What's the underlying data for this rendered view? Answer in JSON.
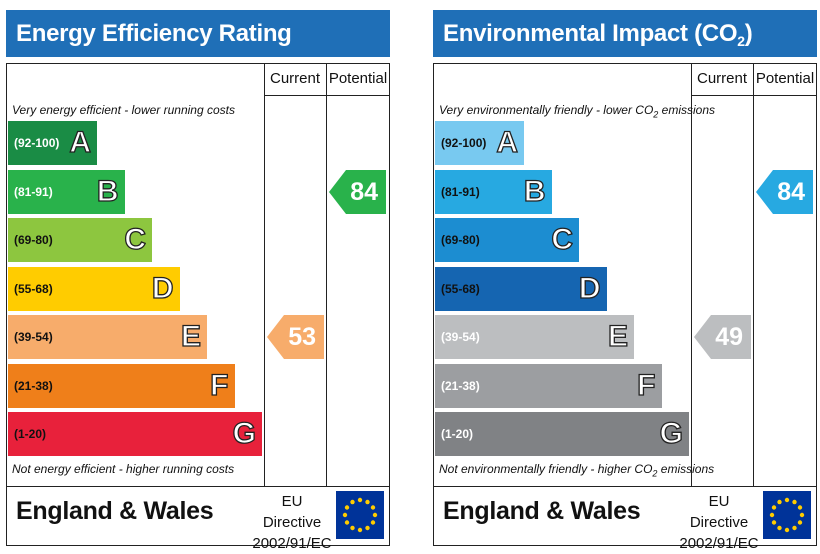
{
  "colors": {
    "header_blue": "#1f6fb7",
    "eer_bands": [
      "#1a8c45",
      "#29b24b",
      "#8dc63f",
      "#ffcc00",
      "#f7ac6b",
      "#ef7f1a",
      "#e8213b"
    ],
    "ei_bands": [
      "#78c9f0",
      "#27a9e1",
      "#1c8dd1",
      "#1565b1",
      "#bcbec0",
      "#9c9ea1",
      "#808285"
    ],
    "flag_blue": "#003399",
    "flag_star": "#ffcc00"
  },
  "chart_data": [
    {
      "type": "bar",
      "title": "Energy Efficiency Rating",
      "column_headers": [
        "Current",
        "Potential"
      ],
      "top_caption": "Very energy efficient - lower running costs",
      "bottom_caption": "Not energy efficient - higher running costs",
      "bands": [
        {
          "range": "(92-100)",
          "letter": "A"
        },
        {
          "range": "(81-91)",
          "letter": "B"
        },
        {
          "range": "(69-80)",
          "letter": "C"
        },
        {
          "range": "(55-68)",
          "letter": "D"
        },
        {
          "range": "(39-54)",
          "letter": "E"
        },
        {
          "range": "(21-38)",
          "letter": "F"
        },
        {
          "range": "(1-20)",
          "letter": "G"
        }
      ],
      "current": {
        "value": 53,
        "band": "E"
      },
      "potential": {
        "value": 84,
        "band": "B"
      },
      "region": "England & Wales",
      "directive": [
        "EU Directive",
        "2002/91/EC"
      ]
    },
    {
      "type": "bar",
      "title_parts": [
        "Environmental Impact (CO",
        "2",
        ") Rating"
      ],
      "column_headers": [
        "Current",
        "Potential"
      ],
      "top_caption_parts": [
        "Very environmentally friendly - lower CO",
        "2",
        " emissions"
      ],
      "bottom_caption_parts": [
        "Not environmentally friendly - higher CO",
        "2",
        " emissions"
      ],
      "bands": [
        {
          "range": "(92-100)",
          "letter": "A"
        },
        {
          "range": "(81-91)",
          "letter": "B"
        },
        {
          "range": "(69-80)",
          "letter": "C"
        },
        {
          "range": "(55-68)",
          "letter": "D"
        },
        {
          "range": "(39-54)",
          "letter": "E"
        },
        {
          "range": "(21-38)",
          "letter": "F"
        },
        {
          "range": "(1-20)",
          "letter": "G"
        }
      ],
      "current": {
        "value": 49,
        "band": "E"
      },
      "potential": {
        "value": 84,
        "band": "B"
      },
      "region": "England & Wales",
      "directive": [
        "EU Directive",
        "2002/91/EC"
      ]
    }
  ]
}
